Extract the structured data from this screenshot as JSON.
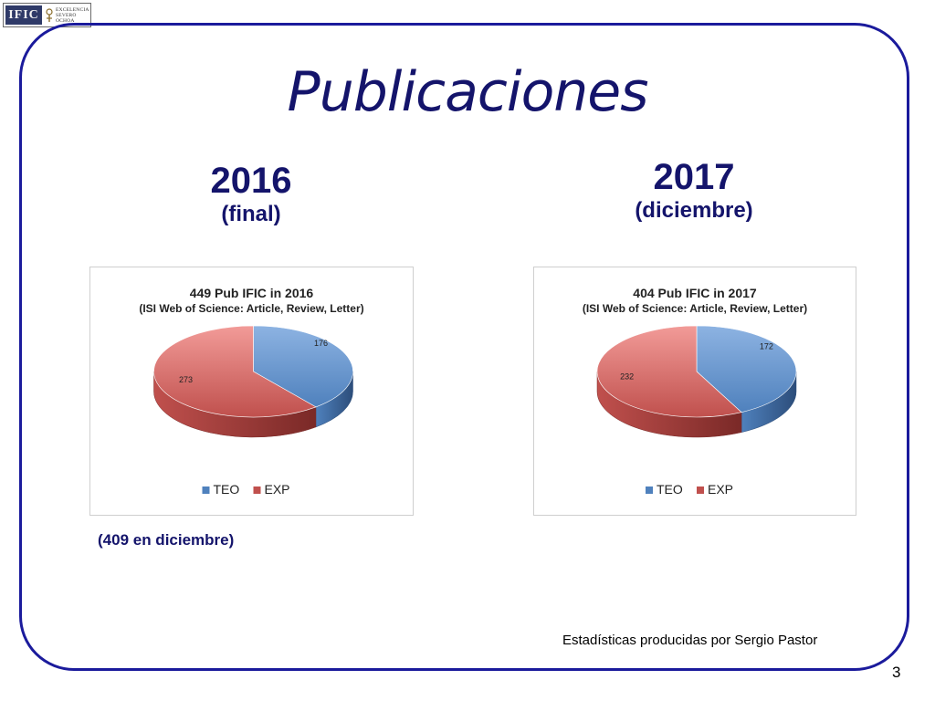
{
  "logo": {
    "text": "IFIC",
    "subtext": [
      "EXCELENCIA",
      "SEVERO",
      "OCHOA"
    ]
  },
  "slide": {
    "title": "Publicaciones",
    "col2016": {
      "year": "2016",
      "subtitle": "(final)"
    },
    "col2017": {
      "year": "2017",
      "subtitle": "(diciembre)"
    },
    "note": "(409 en diciembre)",
    "credit": "Estadísticas producidas por Sergio Pastor",
    "page_number": "3"
  },
  "colors": {
    "TEO": "#4f81bd",
    "EXP": "#c0504d",
    "frame": "#1b1b9c",
    "text": "#14146b"
  },
  "chart_data": [
    {
      "type": "pie",
      "title": "449 Pub IFIC in 2016",
      "subtitle": "(ISI Web of Science: Article, Review, Letter)",
      "categories": [
        "TEO",
        "EXP"
      ],
      "values": [
        176,
        273
      ],
      "legend": "bottom"
    },
    {
      "type": "pie",
      "title": "404 Pub IFIC in 2017",
      "subtitle": "(ISI Web of Science: Article, Review, Letter)",
      "categories": [
        "TEO",
        "EXP"
      ],
      "values": [
        172,
        232
      ],
      "legend": "bottom"
    }
  ]
}
